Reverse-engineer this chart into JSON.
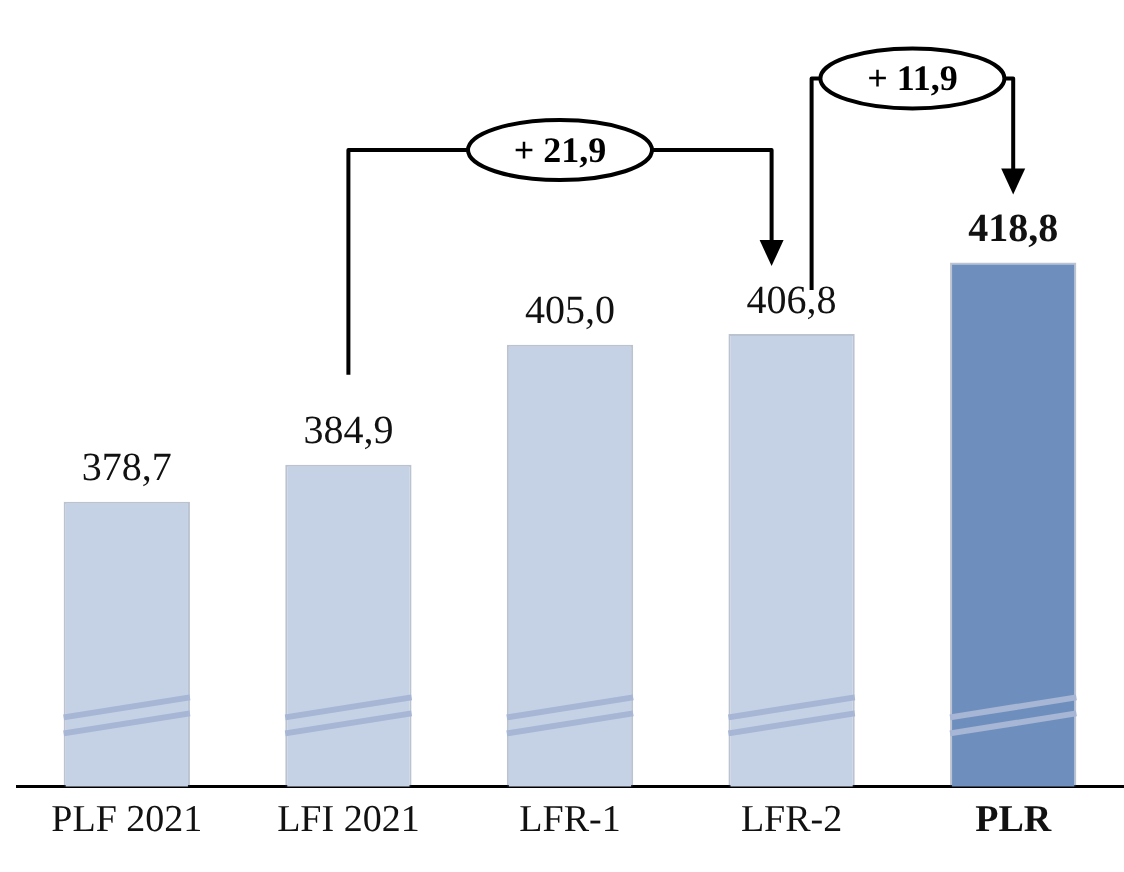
{
  "chart_data": {
    "type": "bar",
    "categories": [
      "PLF 2021",
      "LFI 2021",
      "LFR-1",
      "LFR-2",
      "PLR"
    ],
    "values": [
      378.7,
      384.9,
      405.0,
      406.8,
      418.8
    ],
    "value_labels": [
      "378,7",
      "384,9",
      "405,0",
      "406,8",
      "418,8"
    ],
    "colors": [
      "#c5d1e5",
      "#c5d1e5",
      "#c5d1e5",
      "#c5d1e5",
      "#6e8fbd"
    ],
    "annotations": [
      "+ 21,9",
      "+ 11,9"
    ],
    "grid": false,
    "legend": false,
    "tick_labels": "x"
  }
}
